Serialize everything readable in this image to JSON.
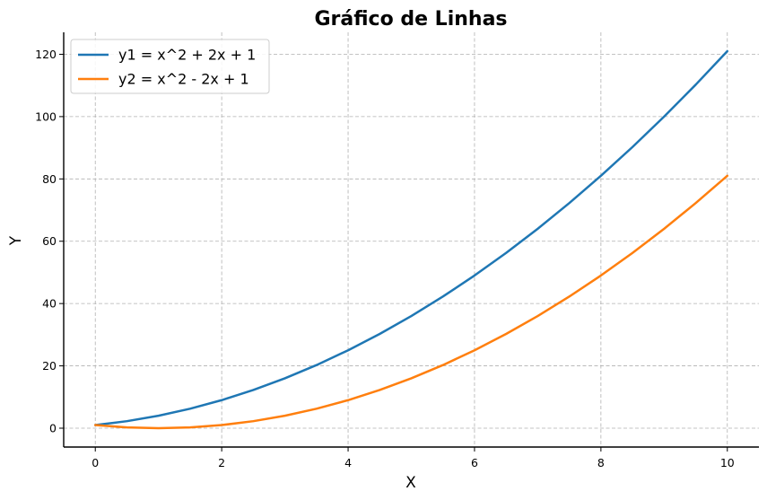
{
  "chart_data": {
    "type": "line",
    "title": "Gráfico de Linhas",
    "xlabel": "X",
    "ylabel": "Y",
    "xlim": [
      -0.5,
      10.5
    ],
    "ylim": [
      -6.05,
      127.05
    ],
    "xticks": [
      0,
      2,
      4,
      6,
      8,
      10
    ],
    "yticks": [
      0,
      20,
      40,
      60,
      80,
      100,
      120
    ],
    "grid": true,
    "legend_position": "top-left",
    "series": [
      {
        "name": "y1 = x^2 + 2x + 1",
        "color": "#1f77b4",
        "x": [
          0,
          0.5,
          1,
          1.5,
          2,
          2.5,
          3,
          3.5,
          4,
          4.5,
          5,
          5.5,
          6,
          6.5,
          7,
          7.5,
          8,
          8.5,
          9,
          9.5,
          10
        ],
        "y": [
          1,
          2.25,
          4,
          6.25,
          9,
          12.25,
          16,
          20.25,
          25,
          30.25,
          36,
          42.25,
          49,
          56.25,
          64,
          72.25,
          81,
          90.25,
          100,
          110.25,
          121
        ]
      },
      {
        "name": "y2 = x^2 - 2x + 1",
        "color": "#ff7f0e",
        "x": [
          0,
          0.5,
          1,
          1.5,
          2,
          2.5,
          3,
          3.5,
          4,
          4.5,
          5,
          5.5,
          6,
          6.5,
          7,
          7.5,
          8,
          8.5,
          9,
          9.5,
          10
        ],
        "y": [
          1,
          0.25,
          0,
          0.25,
          1,
          2.25,
          4,
          6.25,
          9,
          12.25,
          16,
          20.25,
          25,
          30.25,
          36,
          42.25,
          49,
          56.25,
          64,
          72.25,
          81
        ]
      }
    ]
  }
}
